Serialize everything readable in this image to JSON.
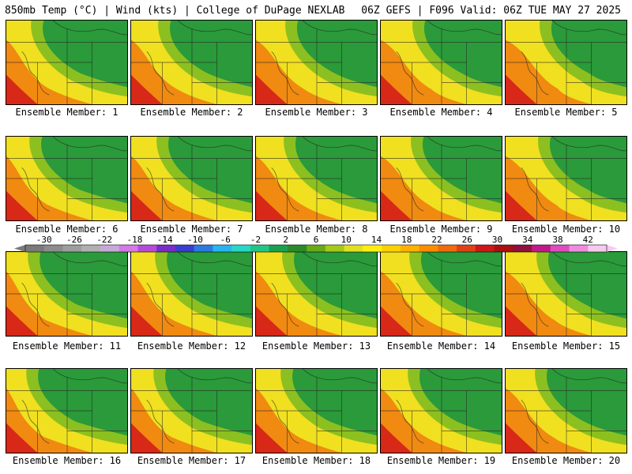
{
  "header": {
    "left": "850mb Temp (°C) | Wind (kts) | College of DuPage NEXLAB",
    "right": "06Z GEFS | F096 Valid: 06Z TUE MAY 27 2025"
  },
  "members": [
    {
      "label": "Ensemble Member: 1"
    },
    {
      "label": "Ensemble Member: 2"
    },
    {
      "label": "Ensemble Member: 3"
    },
    {
      "label": "Ensemble Member: 4"
    },
    {
      "label": "Ensemble Member: 5"
    },
    {
      "label": "Ensemble Member: 6"
    },
    {
      "label": "Ensemble Member: 7"
    },
    {
      "label": "Ensemble Member: 8"
    },
    {
      "label": "Ensemble Member: 9"
    },
    {
      "label": "Ensemble Member: 10"
    },
    {
      "label": "Ensemble Member: 11"
    },
    {
      "label": "Ensemble Member: 12"
    },
    {
      "label": "Ensemble Member: 13"
    },
    {
      "label": "Ensemble Member: 14"
    },
    {
      "label": "Ensemble Member: 15"
    },
    {
      "label": "Ensemble Member: 16"
    },
    {
      "label": "Ensemble Member: 17"
    },
    {
      "label": "Ensemble Member: 18"
    },
    {
      "label": "Ensemble Member: 19"
    },
    {
      "label": "Ensemble Member: 20"
    }
  ],
  "colorbar": {
    "ticks": [
      "-30",
      "-26",
      "-22",
      "-18",
      "-14",
      "-10",
      "-6",
      "-2",
      "2",
      "6",
      "10",
      "14",
      "18",
      "22",
      "26",
      "30",
      "34",
      "38",
      "42"
    ],
    "colors": [
      "#7a7a7a",
      "#8c8c8c",
      "#9e9e9e",
      "#b0b0b0",
      "#c8a8d8",
      "#d678e6",
      "#b44cd8",
      "#7a2cc8",
      "#3c3ccf",
      "#2a7ae0",
      "#28b4f0",
      "#28d6c8",
      "#22c48a",
      "#18a050",
      "#2a8a2a",
      "#6aa818",
      "#a6c81a",
      "#e0e020",
      "#ffee10",
      "#ffd000",
      "#ffb000",
      "#ff8c00",
      "#f06a10",
      "#e04018",
      "#cc1818",
      "#a81010",
      "#901040",
      "#c01a8a",
      "#e04cc0",
      "#f08ae0",
      "#f8c8f0"
    ]
  },
  "map_colors": {
    "cool": "#2a9a3a",
    "mild": "#8cc020",
    "warm": "#f0e020",
    "hot": "#f08a10",
    "vhot": "#d82818"
  }
}
